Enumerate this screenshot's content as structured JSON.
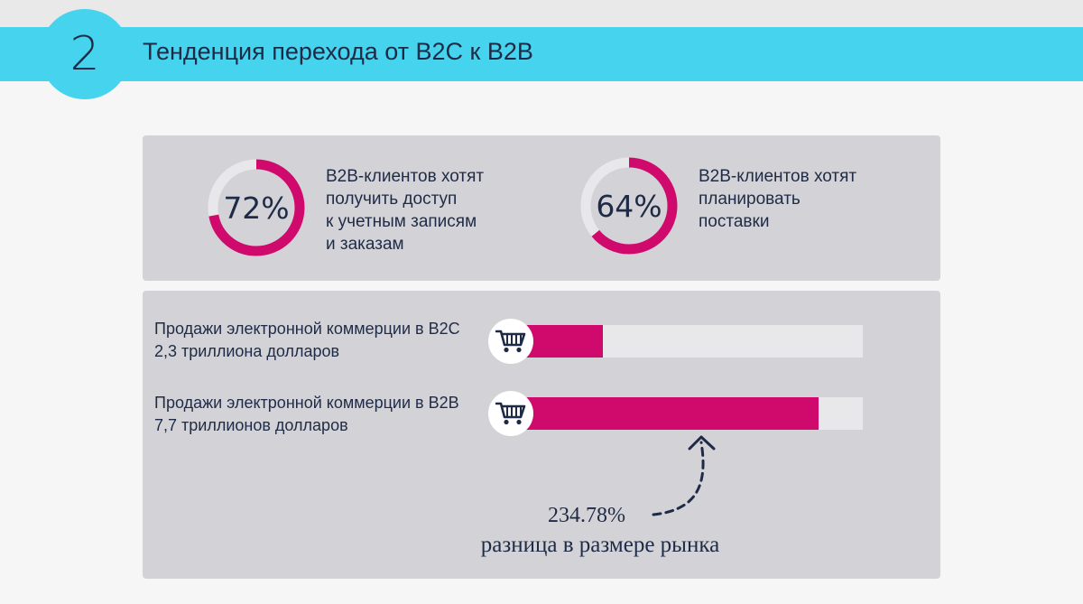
{
  "header": {
    "number": "2",
    "title": "Тенденция перехода от B2C к B2B"
  },
  "stats": [
    {
      "percent": "72%",
      "value": 72,
      "text": "B2B-клиентов хотят\nполучить доступ\nк учетным записям\nи заказам"
    },
    {
      "percent": "64%",
      "value": 64,
      "text": "B2B-клиентов хотят\nпланировать\nпоставки"
    }
  ],
  "sales": [
    {
      "line1": "Продажи электронной коммерции в B2C",
      "line2": "2,3 триллиона долларов",
      "value": 2.3,
      "icon": "shopping-cart-icon"
    },
    {
      "line1": "Продажи электронной коммерции в B2B",
      "line2": "7,7 триллионов долларов",
      "value": 7.7,
      "icon": "shopping-cart-icon"
    }
  ],
  "difference": {
    "percent": "234.78%",
    "label": "разница в размере рынка"
  },
  "colors": {
    "banner": "#45d3ee",
    "accent": "#cf0a6c",
    "text": "#1f2b46",
    "panel": "#d3d3d7",
    "track": "#e8e8ea"
  }
}
